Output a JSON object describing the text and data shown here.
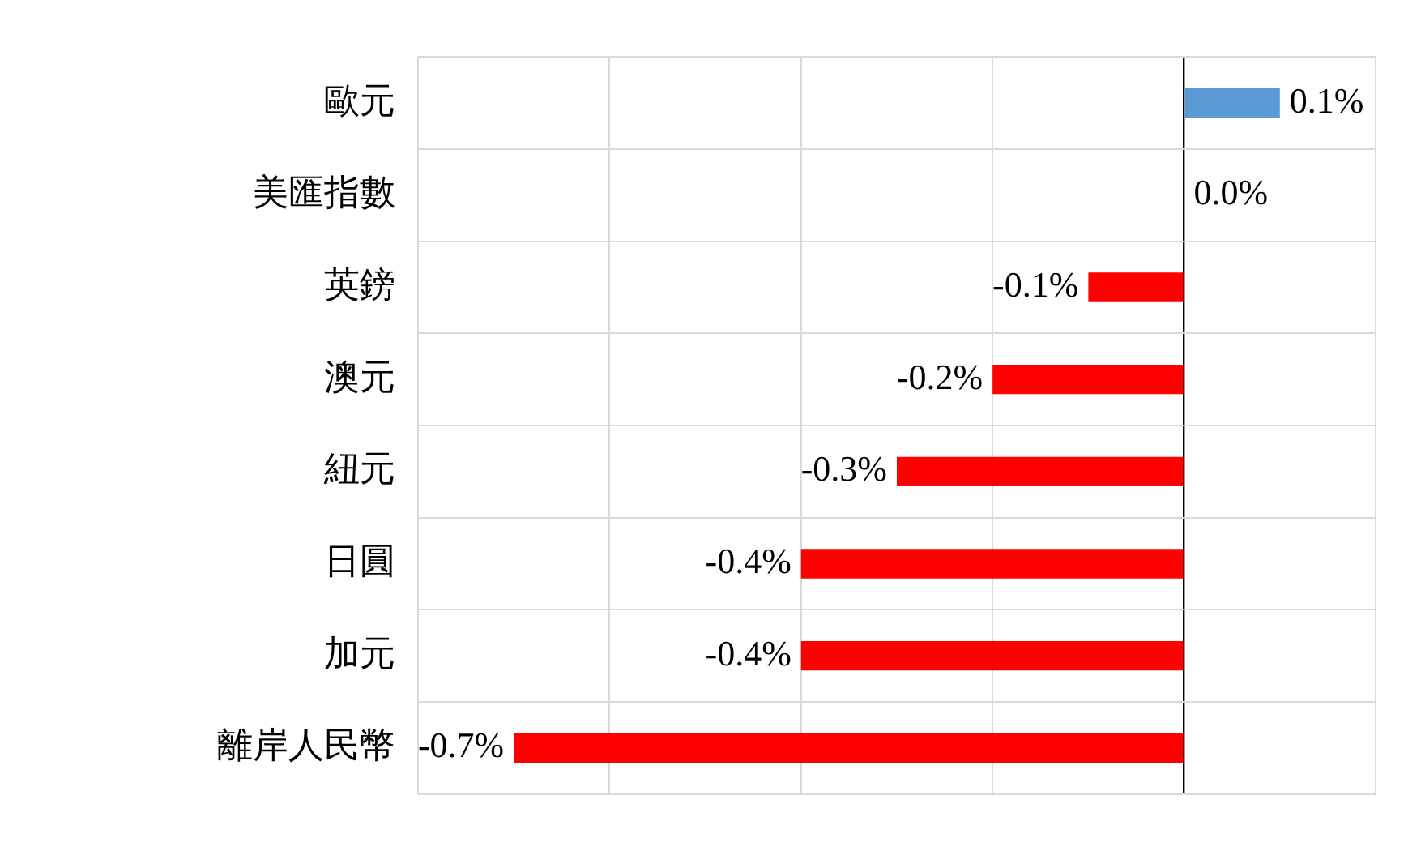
{
  "chart_data": {
    "type": "bar",
    "orientation": "horizontal",
    "categories": [
      "歐元",
      "美匯指數",
      "英鎊",
      "澳元",
      "紐元",
      "日圓",
      "加元",
      "離岸人民幣"
    ],
    "values": [
      0.1,
      0.0,
      -0.1,
      -0.2,
      -0.3,
      -0.4,
      -0.4,
      -0.7
    ],
    "value_labels": [
      "0.1%",
      "0.0%",
      "-0.1%",
      "-0.2%",
      "-0.3%",
      "-0.4%",
      "-0.4%",
      "-0.7%"
    ],
    "colors": [
      "#5b9bd5",
      "#5b9bd5",
      "#ff0000",
      "#ff0000",
      "#ff0000",
      "#ff0000",
      "#ff0000",
      "#ff0000"
    ],
    "xlim": [
      -0.8,
      0.2
    ],
    "xticks": [
      {
        "value": -0.8,
        "label": null
      },
      {
        "value": -0.6,
        "label": null
      },
      {
        "value": -0.4,
        "label": null
      },
      {
        "value": -0.2,
        "label": null
      },
      {
        "value": 0,
        "label": null
      },
      {
        "value": 0.2,
        "label": null
      }
    ],
    "grid": true,
    "tick_labels": "y"
  }
}
